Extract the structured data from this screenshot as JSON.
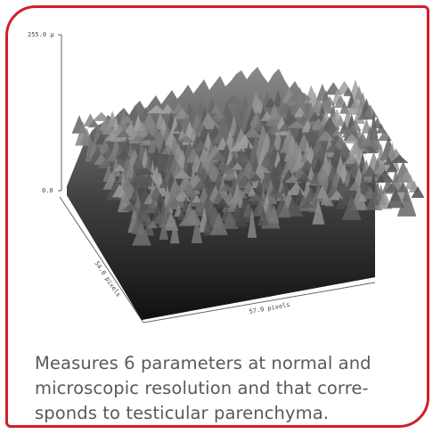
{
  "figure": {
    "z_max_label": "255.0 µ",
    "z_min_label": "0.0",
    "depth_axis_label": "54.0 pixels",
    "width_axis_label": "57.0 pixels"
  },
  "caption": {
    "text": "Measures 6 parameters at normal and microscopic resolution and that corre-sponds to testicular parenchyma."
  },
  "colors": {
    "border": "#d0202a",
    "caption": "#595959"
  }
}
